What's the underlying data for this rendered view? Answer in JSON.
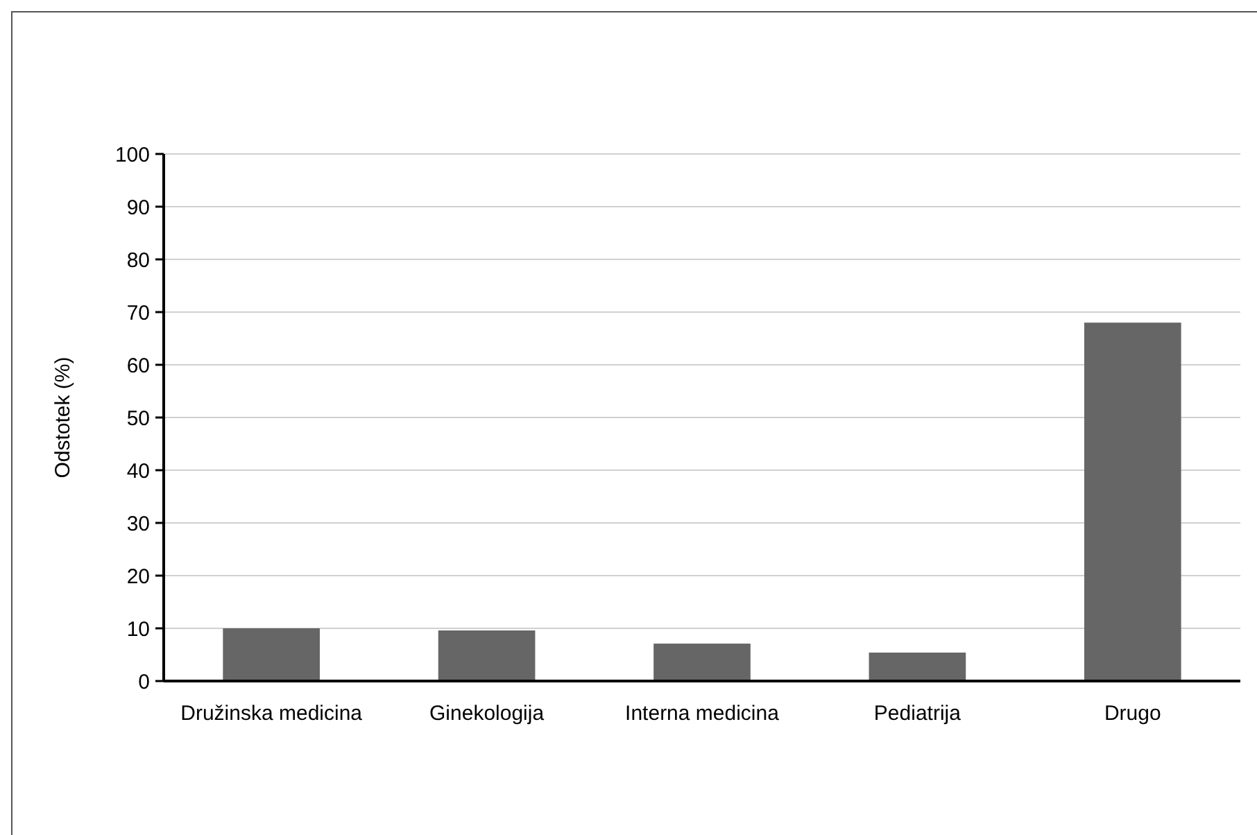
{
  "chart_data": {
    "type": "bar",
    "ylabel": "Odstotek (%)",
    "categories": [
      "Družinska medicina",
      "Ginekologija",
      "Interna medicina",
      "Pediatrija",
      "Drugo"
    ],
    "values": [
      10,
      9.6,
      7.1,
      5.4,
      68
    ],
    "color": "#666666",
    "ylim": [
      0,
      100
    ],
    "yticks": [
      0,
      10,
      20,
      30,
      40,
      50,
      60,
      70,
      80,
      90,
      100
    ],
    "grid": "y"
  }
}
